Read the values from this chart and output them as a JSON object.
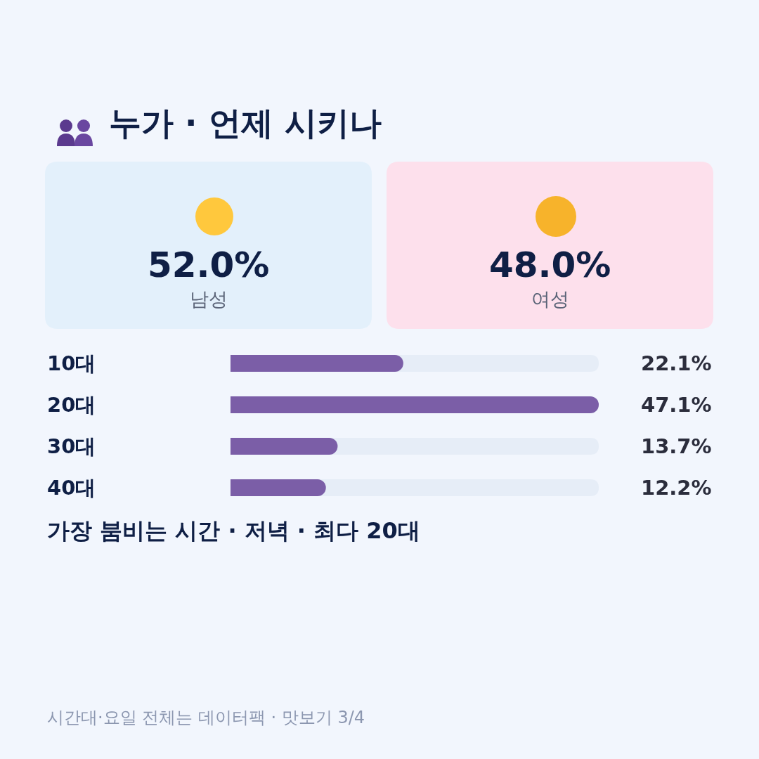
{
  "chart_data": [
    {
      "type": "other",
      "title": "누가 · 언제 시키나",
      "categories": [
        "남성",
        "여성"
      ],
      "values": [
        52.0,
        48.0
      ],
      "value_labels": [
        "52.0%",
        "48.0%"
      ],
      "colors": [
        "#e3f0fb",
        "#fde0ec"
      ]
    },
    {
      "type": "bar",
      "orientation": "horizontal",
      "categories": [
        "10대",
        "20대",
        "30대",
        "40대"
      ],
      "values": [
        22.1,
        47.1,
        13.7,
        12.2
      ],
      "value_labels": [
        "22.1%",
        "47.1%",
        "13.7%",
        "12.2%"
      ],
      "color": "#7b5ea7",
      "tick_labels": "y",
      "annotations": [
        "가장 붐비는 시간 · 저녁 · 최다 20대",
        "시간대·요일 전체는 데이터팩 · 맛보기 3/4"
      ]
    }
  ]
}
